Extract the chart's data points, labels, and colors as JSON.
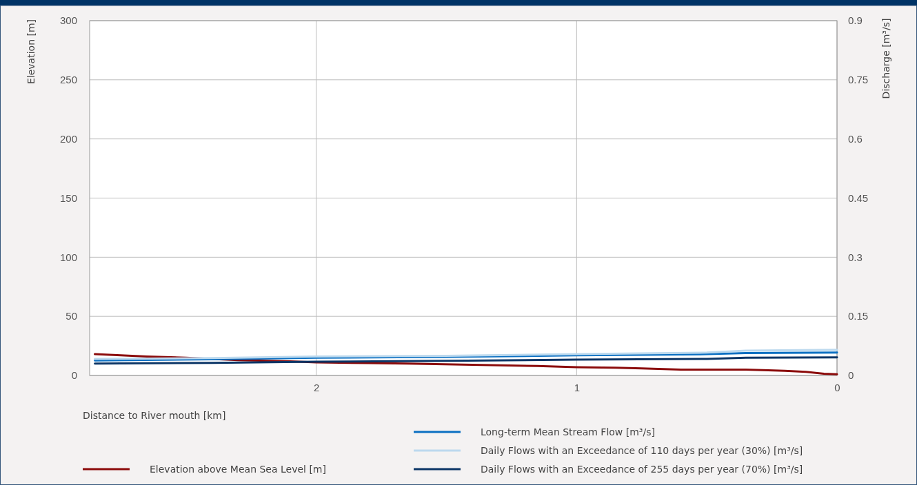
{
  "chart_data": {
    "type": "line",
    "xlabel": "Distance to River mouth  [km]",
    "ylabel": "Elevation [m]",
    "y2label": "Discharge [m³/s]",
    "xlim": [
      2.87,
      0
    ],
    "xticks": [
      2,
      1,
      0
    ],
    "ylim": [
      0,
      300
    ],
    "yticks": [
      0,
      50,
      100,
      150,
      200,
      250,
      300
    ],
    "y2lim": [
      0,
      0.9
    ],
    "y2ticks": [
      0,
      0.15,
      0.3,
      0.45,
      0.6,
      0.75,
      0.9
    ],
    "grid": true,
    "legend": "bottom",
    "line_style": "solid",
    "marker": "none",
    "series": [
      {
        "name": "Elevation above Mean Sea Level  [m]",
        "color": "#8b0a0a",
        "x": [
          2.85,
          2.75,
          2.65,
          2.5,
          2.3,
          2.1,
          2.0,
          1.8,
          1.65,
          1.4,
          1.15,
          1.0,
          0.85,
          0.75,
          0.6,
          0.35,
          0.2,
          0.12,
          0.05,
          0
        ],
        "values": [
          18,
          17,
          16,
          15,
          13,
          12,
          11,
          10.5,
          10,
          9,
          8,
          7,
          6.5,
          6,
          5,
          5,
          4,
          3,
          1.5,
          1
        ]
      },
      {
        "name": "Long-term Mean Stream Flow  [m³/s]",
        "color": "#0a6fc2",
        "axis": "y2",
        "x": [
          2.85,
          2.4,
          2.0,
          1.5,
          1.0,
          0.5,
          0.35,
          0
        ],
        "values": [
          0.038,
          0.041,
          0.045,
          0.047,
          0.051,
          0.054,
          0.057,
          0.058
        ]
      },
      {
        "name": "Daily Flows with an Exceedance of 110 days per year (30%)  [m³/s]",
        "color": "#bcd9ee",
        "axis": "y2",
        "x": [
          2.85,
          2.4,
          2.0,
          1.5,
          1.0,
          0.5,
          0.35,
          0
        ],
        "values": [
          0.042,
          0.044,
          0.048,
          0.05,
          0.054,
          0.058,
          0.063,
          0.065
        ]
      },
      {
        "name": "Daily Flows with an Exceedance of 255 days per year (70%)  [m³/s]",
        "color": "#0b3566",
        "axis": "y2",
        "x": [
          2.85,
          2.4,
          2.0,
          1.5,
          1.0,
          0.5,
          0.35,
          0
        ],
        "values": [
          0.03,
          0.032,
          0.035,
          0.037,
          0.04,
          0.042,
          0.045,
          0.046
        ]
      }
    ]
  }
}
